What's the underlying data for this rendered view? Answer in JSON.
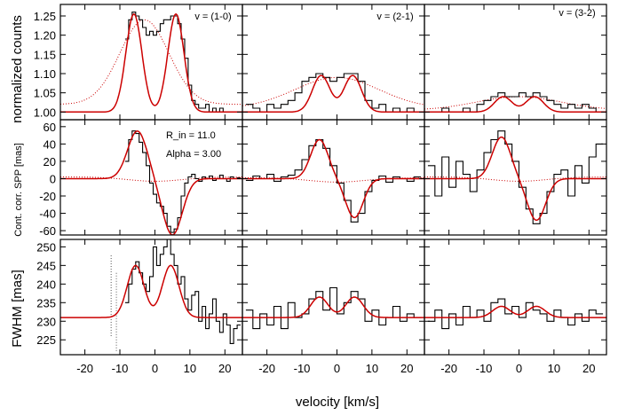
{
  "figure": {
    "xlabel": "velocity [km/s]",
    "row_ylabels": [
      "normalized counts",
      "Cont. corr. SPP [mas]",
      "FWHM [mas]"
    ],
    "column_titles": [
      "v = (1-0)",
      "v = (2-1)",
      "v = (3-2)"
    ],
    "annotations": [
      "R_in = 11.0",
      "Alpha = 3.00"
    ],
    "colors": {
      "data": "#000000",
      "model": "#cc0000",
      "model_dotted": "#cc0000",
      "dotted_gray": "#555555"
    }
  },
  "chart_data": {
    "type": "line",
    "grid": false,
    "xlim": [
      -27,
      25
    ],
    "xticks": [
      -20,
      -10,
      0,
      10,
      20
    ],
    "rows": [
      {
        "name": "normalized counts",
        "ylim": [
          0.98,
          1.28
        ],
        "yticks": [
          1.0,
          1.05,
          1.1,
          1.15,
          1.2,
          1.25
        ],
        "ytick_labels": [
          "1.00",
          "1.05",
          "1.10",
          "1.15",
          "1.20",
          "1.25"
        ],
        "panels": [
          {
            "title": "v = (1-0)",
            "model": {
              "baseline": 1.0,
              "peaks": [
                {
                  "center": -6.0,
                  "amp": 0.255,
                  "width": 2.3
                },
                {
                  "center": 6.0,
                  "amp": 0.255,
                  "width": 2.3
                }
              ]
            },
            "data_x": [
              -8,
              -7,
              -6,
              -5,
              -4,
              -3,
              -2,
              -1,
              0,
              1,
              2,
              3,
              4,
              5,
              6,
              7,
              8,
              9,
              10,
              11,
              12,
              13,
              14,
              15,
              16,
              17,
              18,
              19,
              20,
              21,
              22,
              23,
              24
            ],
            "data_y": [
              1.19,
              1.24,
              1.26,
              1.25,
              1.24,
              1.22,
              1.2,
              1.21,
              1.2,
              1.21,
              1.23,
              1.24,
              1.24,
              1.25,
              1.25,
              1.23,
              1.19,
              1.14,
              1.07,
              1.03,
              1.02,
              1.01,
              1.01,
              1.02,
              1.0,
              1.01,
              1.0,
              1.01,
              1.0,
              1.0,
              1.0,
              1.0,
              1.0
            ],
            "dotted_curve": {
              "center": -3,
              "amp": 0.22,
              "width": 7,
              "baseline": 1.02
            }
          },
          {
            "title": "v = (2-1)",
            "model": {
              "baseline": 1.0,
              "peaks": [
                {
                  "center": -4.5,
                  "amp": 0.095,
                  "width": 2.5
                },
                {
                  "center": 4.5,
                  "amp": 0.095,
                  "width": 2.5
                }
              ]
            },
            "data_x": [
              -25,
              -23,
              -21,
              -19,
              -17,
              -15,
              -13,
              -11,
              -9,
              -7,
              -5,
              -3,
              -1,
              1,
              3,
              5,
              7,
              9,
              11,
              13,
              15,
              17,
              19,
              21,
              23
            ],
            "data_y": [
              1.02,
              1.01,
              1.0,
              1.02,
              1.01,
              1.02,
              1.03,
              1.05,
              1.08,
              1.09,
              1.1,
              1.09,
              1.08,
              1.09,
              1.1,
              1.1,
              1.08,
              1.03,
              1.01,
              1.02,
              1.0,
              1.01,
              1.0,
              1.01,
              1.0
            ],
            "dotted_curve": {
              "center": 0,
              "amp": 0.08,
              "width": 12,
              "baseline": 1.01
            }
          },
          {
            "title": "v = (3-2)",
            "model": {
              "baseline": 1.0,
              "peaks": [
                {
                  "center": -4.5,
                  "amp": 0.04,
                  "width": 2.5
                },
                {
                  "center": 4.5,
                  "amp": 0.04,
                  "width": 2.5
                }
              ]
            },
            "data_x": [
              -25,
              -23,
              -21,
              -19,
              -17,
              -15,
              -13,
              -11,
              -9,
              -7,
              -5,
              -3,
              -1,
              1,
              3,
              5,
              7,
              9,
              11,
              13,
              15,
              17,
              19,
              21,
              23
            ],
            "data_y": [
              1.0,
              1.0,
              1.01,
              1.0,
              1.0,
              1.01,
              1.0,
              1.02,
              1.03,
              1.04,
              1.05,
              1.04,
              1.04,
              1.05,
              1.04,
              1.05,
              1.04,
              1.03,
              1.02,
              1.01,
              1.02,
              1.01,
              1.02,
              1.01,
              1.0
            ],
            "dotted_curve": {
              "center": 0,
              "amp": 0.035,
              "width": 12,
              "baseline": 1.005
            }
          }
        ]
      },
      {
        "name": "Cont. corr. SPP [mas]",
        "ylim": [
          -65,
          68
        ],
        "yticks": [
          -60,
          -40,
          -20,
          0,
          20,
          40,
          60
        ],
        "ytick_labels": [
          "-60",
          "-40",
          "-20",
          "0",
          "20",
          "40",
          "60"
        ],
        "panels": [
          {
            "model": {
              "baseline": 0,
              "peaks": [
                {
                  "center": -5.0,
                  "amp": 55,
                  "width": 2.8
                },
                {
                  "center": 5.0,
                  "amp": -65,
                  "width": 2.8
                }
              ]
            },
            "data_x": [
              -8,
              -7,
              -6,
              -5,
              -4,
              -3,
              -2,
              -1,
              0,
              1,
              2,
              3,
              4,
              5,
              6,
              7,
              8,
              9,
              10,
              11,
              12,
              13,
              14,
              15,
              16,
              17,
              18,
              19,
              20,
              21,
              22,
              23,
              24
            ],
            "data_y": [
              20,
              45,
              55,
              52,
              42,
              30,
              15,
              -5,
              -18,
              -28,
              -32,
              -40,
              -55,
              -62,
              -58,
              -45,
              -20,
              -5,
              2,
              5,
              0,
              -3,
              2,
              0,
              3,
              -2,
              0,
              4,
              0,
              -3,
              2,
              0,
              1
            ],
            "dotted_curve": {
              "center": 0,
              "amp": -5,
              "width": 8,
              "baseline": 2
            }
          },
          {
            "model": {
              "baseline": 0,
              "peaks": [
                {
                  "center": -5.0,
                  "amp": 45,
                  "width": 2.5
                },
                {
                  "center": 5.0,
                  "amp": -45,
                  "width": 2.5
                }
              ]
            },
            "data_x": [
              -25,
              -23,
              -21,
              -19,
              -17,
              -15,
              -13,
              -11,
              -9,
              -7,
              -5,
              -3,
              -1,
              1,
              3,
              5,
              7,
              9,
              11,
              13,
              15,
              17,
              19,
              21,
              23
            ],
            "data_y": [
              -2,
              3,
              0,
              5,
              -3,
              2,
              4,
              10,
              22,
              38,
              45,
              35,
              15,
              -5,
              -25,
              -50,
              -40,
              -15,
              -2,
              3,
              -4,
              2,
              0,
              -3,
              2
            ],
            "dotted_curve": {
              "center": 0,
              "amp": -5,
              "width": 8,
              "baseline": 1
            }
          },
          {
            "model": {
              "baseline": 0,
              "peaks": [
                {
                  "center": -5.0,
                  "amp": 48,
                  "width": 2.6
                },
                {
                  "center": 5.0,
                  "amp": -48,
                  "width": 2.6
                }
              ]
            },
            "data_x": [
              -25,
              -23,
              -21,
              -19,
              -17,
              -15,
              -13,
              -11,
              -9,
              -7,
              -5,
              -3,
              -1,
              1,
              3,
              5,
              7,
              9,
              11,
              13,
              15,
              17,
              19,
              21,
              23
            ],
            "data_y": [
              15,
              -20,
              25,
              -10,
              20,
              5,
              -15,
              10,
              30,
              45,
              55,
              40,
              20,
              -10,
              -35,
              -52,
              -40,
              -15,
              5,
              10,
              -20,
              15,
              -5,
              25,
              40
            ],
            "dotted_curve": {
              "center": 0,
              "amp": -5,
              "width": 8,
              "baseline": 2
            }
          }
        ]
      },
      {
        "name": "FWHM [mas]",
        "ylim": [
          221,
          252
        ],
        "yticks": [
          225,
          230,
          235,
          240,
          245,
          250
        ],
        "ytick_labels": [
          "225",
          "230",
          "235",
          "240",
          "245",
          "250"
        ],
        "panels": [
          {
            "model": {
              "baseline": 231,
              "peaks": [
                {
                  "center": -5.5,
                  "amp": 14,
                  "width": 2.4
                },
                {
                  "center": 4.5,
                  "amp": 14,
                  "width": 2.4
                }
              ]
            },
            "data_x": [
              -8,
              -7,
              -6,
              -5,
              -4,
              -3,
              -2,
              -1,
              0,
              1,
              2,
              3,
              4,
              5,
              6,
              7,
              8,
              9,
              10,
              11,
              12,
              13,
              14,
              15,
              16,
              17,
              18,
              19,
              20,
              21,
              22,
              23,
              24
            ],
            "data_y": [
              235,
              240,
              244,
              246,
              243,
              240,
              238,
              242,
              250,
              245,
              248,
              250,
              252,
              248,
              245,
              240,
              242,
              236,
              233,
              237,
              238,
              230,
              234,
              228,
              232,
              236,
              230,
              227,
              232,
              229,
              224,
              228,
              229
            ],
            "dotted_segments": [
              {
                "x": [
                  -12.5,
                  -12.5
                ],
                "y": [
                  226,
                  248
                ]
              },
              {
                "x": [
                  -11.0,
                  -11.0
                ],
                "y": [
                  222,
                  243
                ]
              }
            ]
          },
          {
            "model": {
              "baseline": 231,
              "peaks": [
                {
                  "center": -5.0,
                  "amp": 5.5,
                  "width": 2.5
                },
                {
                  "center": 5.0,
                  "amp": 5.5,
                  "width": 2.5
                }
              ]
            },
            "data_x": [
              -25,
              -23,
              -21,
              -19,
              -17,
              -15,
              -13,
              -11,
              -9,
              -7,
              -5,
              -3,
              -1,
              1,
              3,
              5,
              7,
              9,
              11,
              13,
              15,
              17,
              19,
              21,
              23
            ],
            "data_y": [
              233,
              228,
              232,
              229,
              234,
              228,
              235,
              231,
              232,
              236,
              238,
              233,
              239,
              232,
              235,
              238,
              236,
              230,
              233,
              229,
              231,
              234,
              230,
              232,
              231
            ],
            "dotted_segments": []
          },
          {
            "model": {
              "baseline": 231,
              "peaks": [
                {
                  "center": -5.0,
                  "amp": 3,
                  "width": 2.5
                },
                {
                  "center": 5.0,
                  "amp": 3,
                  "width": 2.5
                }
              ]
            },
            "data_x": [
              -25,
              -23,
              -21,
              -19,
              -17,
              -15,
              -13,
              -11,
              -9,
              -7,
              -5,
              -3,
              -1,
              1,
              3,
              5,
              7,
              9,
              11,
              13,
              15,
              17,
              19,
              21,
              23
            ],
            "data_y": [
              230,
              233,
              228,
              232,
              229,
              234,
              231,
              233,
              230,
              235,
              236,
              232,
              234,
              231,
              235,
              233,
              232,
              230,
              233,
              231,
              229,
              232,
              230,
              233,
              232
            ],
            "dotted_segments": []
          }
        ]
      }
    ]
  }
}
